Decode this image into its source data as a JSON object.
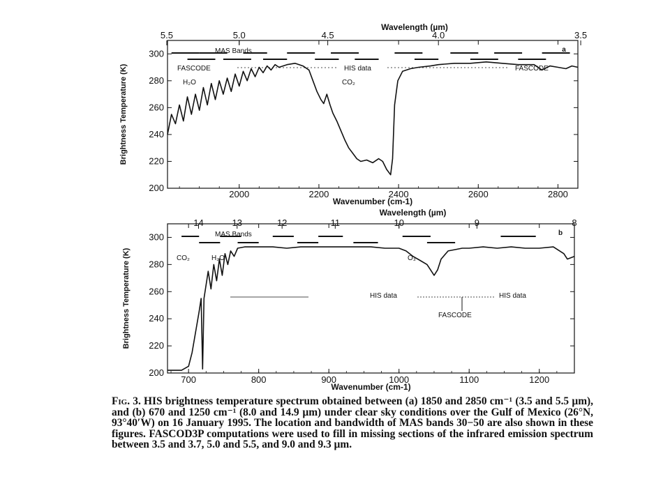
{
  "chart_data": [
    {
      "type": "line",
      "panel_letter": "a",
      "xlabel": "Wavenumber (cm-1)",
      "x2label": "Wavelength (µm)",
      "ylabel": "Brightness Temperature (K)",
      "xlim": [
        1820,
        2850
      ],
      "ylim": [
        200,
        310
      ],
      "xticks": [
        2000,
        2200,
        2400,
        2600,
        2800
      ],
      "yticks": [
        200,
        220,
        240,
        260,
        280,
        300
      ],
      "x2ticks": [
        {
          "label": "5.5",
          "wavelength": 5.5
        },
        {
          "label": "5.0",
          "wavelength": 5.0
        },
        {
          "label": "4.5",
          "wavelength": 4.5
        },
        {
          "label": "4.0",
          "wavelength": 4.0
        },
        {
          "label": "3.5",
          "wavelength": 3.5
        }
      ],
      "legend_label": "MAS Bands",
      "mas_bands": [
        [
          1830,
          1900
        ],
        [
          1870,
          1940
        ],
        [
          1900,
          1970
        ],
        [
          1960,
          2030
        ],
        [
          2010,
          2070
        ],
        [
          2060,
          2120
        ],
        [
          2120,
          2190
        ],
        [
          2190,
          2250
        ],
        [
          2230,
          2300
        ],
        [
          2290,
          2350
        ],
        [
          2390,
          2460
        ],
        [
          2440,
          2500
        ],
        [
          2530,
          2600
        ],
        [
          2580,
          2650
        ],
        [
          2640,
          2710
        ],
        [
          2700,
          2770
        ],
        [
          2760,
          2830
        ]
      ],
      "annotations": {
        "left_source": "FASCODE",
        "middle_source": "HIS data",
        "right_source": "FASCODE",
        "gas1": "H₂O",
        "gas2": "CO₂"
      },
      "spectrum": [
        [
          1820,
          240
        ],
        [
          1830,
          255
        ],
        [
          1840,
          248
        ],
        [
          1850,
          262
        ],
        [
          1860,
          250
        ],
        [
          1870,
          268
        ],
        [
          1880,
          255
        ],
        [
          1890,
          270
        ],
        [
          1900,
          258
        ],
        [
          1910,
          275
        ],
        [
          1920,
          262
        ],
        [
          1930,
          278
        ],
        [
          1940,
          266
        ],
        [
          1950,
          280
        ],
        [
          1960,
          270
        ],
        [
          1970,
          282
        ],
        [
          1980,
          272
        ],
        [
          1990,
          285
        ],
        [
          2000,
          276
        ],
        [
          2010,
          287
        ],
        [
          2020,
          280
        ],
        [
          2030,
          289
        ],
        [
          2040,
          283
        ],
        [
          2050,
          290
        ],
        [
          2060,
          286
        ],
        [
          2070,
          291
        ],
        [
          2080,
          288
        ],
        [
          2090,
          292
        ],
        [
          2100,
          290
        ],
        [
          2120,
          292
        ],
        [
          2140,
          293
        ],
        [
          2160,
          291
        ],
        [
          2175,
          288
        ],
        [
          2185,
          280
        ],
        [
          2195,
          272
        ],
        [
          2205,
          266
        ],
        [
          2212,
          263
        ],
        [
          2220,
          270
        ],
        [
          2228,
          262
        ],
        [
          2235,
          256
        ],
        [
          2245,
          250
        ],
        [
          2255,
          243
        ],
        [
          2265,
          236
        ],
        [
          2275,
          230
        ],
        [
          2285,
          226
        ],
        [
          2295,
          222
        ],
        [
          2305,
          220
        ],
        [
          2320,
          221
        ],
        [
          2335,
          219
        ],
        [
          2350,
          222
        ],
        [
          2360,
          220
        ],
        [
          2370,
          214
        ],
        [
          2380,
          210
        ],
        [
          2385,
          222
        ],
        [
          2390,
          262
        ],
        [
          2398,
          280
        ],
        [
          2410,
          287
        ],
        [
          2430,
          289
        ],
        [
          2450,
          290
        ],
        [
          2480,
          291
        ],
        [
          2500,
          292
        ],
        [
          2540,
          293
        ],
        [
          2580,
          293
        ],
        [
          2620,
          294
        ],
        [
          2660,
          293
        ],
        [
          2700,
          292
        ],
        [
          2740,
          292
        ],
        [
          2760,
          288
        ],
        [
          2780,
          291
        ],
        [
          2800,
          290
        ],
        [
          2820,
          289
        ],
        [
          2835,
          291
        ],
        [
          2850,
          290
        ]
      ]
    },
    {
      "type": "line",
      "panel_letter": "b",
      "xlabel": "Wavenumber (cm-1)",
      "x2label": "Wavelength (µm)",
      "ylabel": "Brightness Temperature (K)",
      "xlim": [
        670,
        1250
      ],
      "ylim": [
        200,
        310
      ],
      "xticks": [
        700,
        800,
        900,
        1000,
        1100,
        1200
      ],
      "yticks": [
        200,
        220,
        240,
        260,
        280,
        300
      ],
      "x2ticks": [
        {
          "label": "14",
          "wavelength": 14
        },
        {
          "label": "13",
          "wavelength": 13
        },
        {
          "label": "12",
          "wavelength": 12
        },
        {
          "label": "11",
          "wavelength": 11
        },
        {
          "label": "10",
          "wavelength": 10
        },
        {
          "label": "9",
          "wavelength": 9
        },
        {
          "label": "8",
          "wavelength": 8
        }
      ],
      "legend_label": "MAS Bands",
      "mas_bands": [
        [
          690,
          715
        ],
        [
          715,
          745
        ],
        [
          745,
          775
        ],
        [
          770,
          800
        ],
        [
          820,
          850
        ],
        [
          855,
          885
        ],
        [
          885,
          920
        ],
        [
          935,
          970
        ],
        [
          1005,
          1045
        ],
        [
          1040,
          1080
        ],
        [
          1145,
          1195
        ]
      ],
      "annotations": {
        "gas1": "CO₂",
        "gas2": "H₂O",
        "gas3": "O₃",
        "his_left": "HIS data",
        "his_right": "HIS data",
        "fascode": "FASCODE"
      },
      "spectrum": [
        [
          670,
          202
        ],
        [
          690,
          202
        ],
        [
          700,
          205
        ],
        [
          705,
          215
        ],
        [
          710,
          230
        ],
        [
          715,
          245
        ],
        [
          718,
          255
        ],
        [
          720,
          203
        ],
        [
          722,
          255
        ],
        [
          725,
          265
        ],
        [
          728,
          275
        ],
        [
          732,
          262
        ],
        [
          736,
          280
        ],
        [
          740,
          268
        ],
        [
          744,
          284
        ],
        [
          748,
          272
        ],
        [
          752,
          288
        ],
        [
          756,
          280
        ],
        [
          760,
          290
        ],
        [
          765,
          286
        ],
        [
          770,
          292
        ],
        [
          780,
          293
        ],
        [
          800,
          293
        ],
        [
          820,
          293
        ],
        [
          840,
          292
        ],
        [
          860,
          293
        ],
        [
          880,
          293
        ],
        [
          900,
          293
        ],
        [
          920,
          293
        ],
        [
          940,
          293
        ],
        [
          960,
          293
        ],
        [
          980,
          292
        ],
        [
          1000,
          292
        ],
        [
          1010,
          290
        ],
        [
          1020,
          286
        ],
        [
          1030,
          283
        ],
        [
          1040,
          280
        ],
        [
          1045,
          276
        ],
        [
          1050,
          272
        ],
        [
          1055,
          276
        ],
        [
          1060,
          284
        ],
        [
          1070,
          290
        ],
        [
          1080,
          291
        ],
        [
          1090,
          292
        ],
        [
          1100,
          292
        ],
        [
          1120,
          293
        ],
        [
          1140,
          292
        ],
        [
          1160,
          293
        ],
        [
          1180,
          292
        ],
        [
          1200,
          292
        ],
        [
          1220,
          293
        ],
        [
          1235,
          288
        ],
        [
          1240,
          284
        ],
        [
          1250,
          286
        ]
      ]
    }
  ],
  "caption": {
    "lead": "Fig. 3.",
    "body": "HIS brightness temperature spectrum obtained between (a) 1850 and 2850 cm⁻¹ (3.5 and 5.5 µm), and (b) 670 and 1250 cm⁻¹ (8.0 and 14.9 µm) under clear sky conditions over the Gulf of Mexico (26°N, 93°40′W) on 16 January 1995. The location and bandwidth of MAS bands 30−50 are also shown in these figures. FASCOD3P computations were used to fill in missing sections of the infrared emission spectrum between 3.5 and 3.7, 5.0 and 5.5, and 9.0 and 9.3 µm."
  }
}
